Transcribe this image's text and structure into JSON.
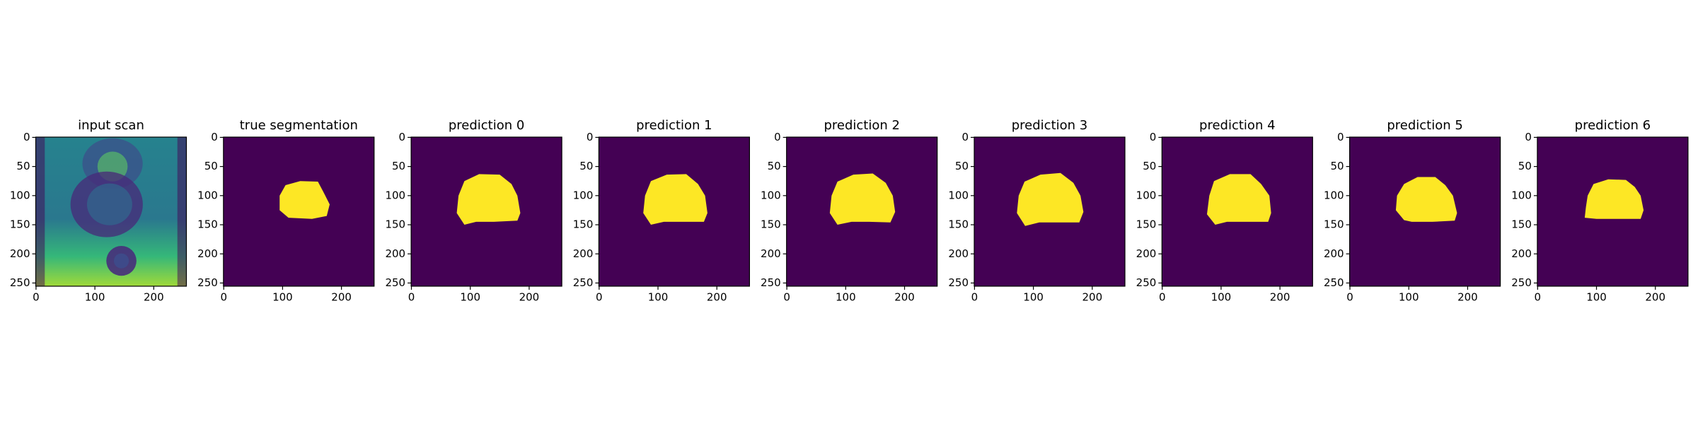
{
  "chart_data": [
    {
      "type": "image",
      "title": "input scan",
      "xlim": [
        -0.5,
        255.5
      ],
      "ylim": [
        255.5,
        -0.5
      ],
      "xticks": [
        0,
        100,
        200
      ],
      "yticks": [
        0,
        50,
        100,
        150,
        200,
        250
      ]
    },
    {
      "type": "image",
      "title": "true segmentation",
      "xlim": [
        -0.5,
        255.5
      ],
      "ylim": [
        255.5,
        -0.5
      ],
      "xticks": [
        0,
        100,
        200
      ],
      "yticks": [
        0,
        50,
        100,
        150,
        200,
        250
      ]
    },
    {
      "type": "image",
      "title": "prediction 0",
      "xlim": [
        -0.5,
        255.5
      ],
      "ylim": [
        255.5,
        -0.5
      ],
      "xticks": [
        0,
        100,
        200
      ],
      "yticks": [
        0,
        50,
        100,
        150,
        200,
        250
      ]
    },
    {
      "type": "image",
      "title": "prediction 1",
      "xlim": [
        -0.5,
        255.5
      ],
      "ylim": [
        255.5,
        -0.5
      ],
      "xticks": [
        0,
        100,
        200
      ],
      "yticks": [
        0,
        50,
        100,
        150,
        200,
        250
      ]
    },
    {
      "type": "image",
      "title": "prediction 2",
      "xlim": [
        -0.5,
        255.5
      ],
      "ylim": [
        255.5,
        -0.5
      ],
      "xticks": [
        0,
        100,
        200
      ],
      "yticks": [
        0,
        50,
        100,
        150,
        200,
        250
      ]
    },
    {
      "type": "image",
      "title": "prediction 3",
      "xlim": [
        -0.5,
        255.5
      ],
      "ylim": [
        255.5,
        -0.5
      ],
      "xticks": [
        0,
        100,
        200
      ],
      "yticks": [
        0,
        50,
        100,
        150,
        200,
        250
      ]
    },
    {
      "type": "image",
      "title": "prediction 4",
      "xlim": [
        -0.5,
        255.5
      ],
      "ylim": [
        255.5,
        -0.5
      ],
      "xticks": [
        0,
        100,
        200
      ],
      "yticks": [
        0,
        50,
        100,
        150,
        200,
        250
      ]
    },
    {
      "type": "image",
      "title": "prediction 5",
      "xlim": [
        -0.5,
        255.5
      ],
      "ylim": [
        255.5,
        -0.5
      ],
      "xticks": [
        0,
        100,
        200
      ],
      "yticks": [
        0,
        50,
        100,
        150,
        200,
        250
      ]
    },
    {
      "type": "image",
      "title": "prediction 6",
      "xlim": [
        -0.5,
        255.5
      ],
      "ylim": [
        255.5,
        -0.5
      ],
      "xticks": [
        0,
        100,
        200
      ],
      "yticks": [
        0,
        50,
        100,
        150,
        200,
        250
      ]
    }
  ]
}
